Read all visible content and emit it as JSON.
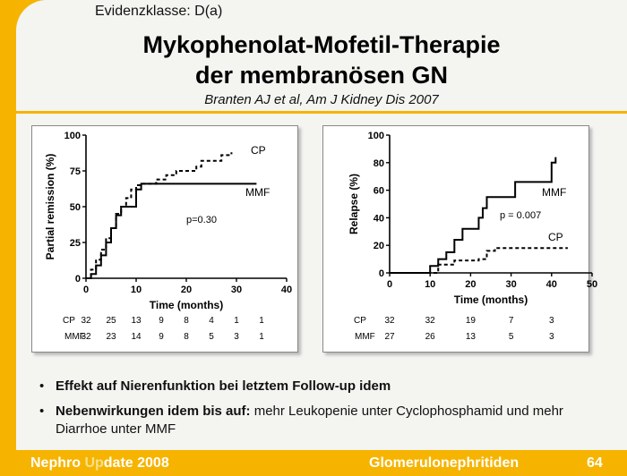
{
  "slide": {
    "evidence": "Evidenzklasse: D(a)",
    "title_line1": "Mykophenolat-Mofetil-Therapie",
    "title_line2": "der membranösen GN",
    "citation": "Branten AJ et al, Am J Kidney Dis 2007"
  },
  "chart_data": [
    {
      "type": "line",
      "title": "",
      "xlabel": "Time (months)",
      "ylabel": "Partial remission (%)",
      "xlim": [
        0,
        40
      ],
      "ylim": [
        0,
        100
      ],
      "xticks": [
        0,
        10,
        20,
        30,
        40
      ],
      "yticks": [
        0,
        25,
        50,
        75,
        100
      ],
      "annotation": "p=0.30",
      "series": [
        {
          "name": "CP",
          "style": "dashed",
          "color": "#000000",
          "x": [
            0,
            1,
            2,
            3,
            4,
            5,
            6,
            7,
            8,
            9,
            10,
            11,
            14,
            16,
            18,
            22,
            23,
            27,
            29
          ],
          "y": [
            0,
            6,
            13,
            20,
            28,
            35,
            45,
            50,
            56,
            62,
            65,
            66,
            69,
            72,
            75,
            78,
            82,
            86,
            88
          ]
        },
        {
          "name": "MMF",
          "style": "solid",
          "color": "#000000",
          "x": [
            0,
            1,
            2,
            3,
            4,
            5,
            6,
            7,
            9,
            10,
            11,
            34
          ],
          "y": [
            0,
            3,
            9,
            16,
            25,
            35,
            44,
            50,
            50,
            62,
            66,
            66
          ]
        }
      ],
      "risk_table": {
        "times": [
          0,
          5,
          10,
          15,
          20,
          25,
          30,
          35
        ],
        "rows": [
          {
            "label": "CP",
            "values": [
              "32",
              "25",
              "13",
              "9",
              "8",
              "4",
              "1",
              "1"
            ]
          },
          {
            "label": "MMF",
            "values": [
              "32",
              "23",
              "14",
              "9",
              "8",
              "5",
              "3",
              "1"
            ]
          }
        ]
      }
    },
    {
      "type": "line",
      "title": "",
      "xlabel": "Time (months)",
      "ylabel": "Relapse (%)",
      "xlim": [
        0,
        50
      ],
      "ylim": [
        0,
        100
      ],
      "xticks": [
        0,
        10,
        20,
        30,
        40,
        50
      ],
      "yticks": [
        0,
        20,
        40,
        60,
        80,
        100
      ],
      "annotation": "p = 0.007",
      "series": [
        {
          "name": "MMF",
          "style": "solid",
          "color": "#000000",
          "x": [
            0,
            8,
            10,
            12,
            14,
            16,
            18,
            20,
            22,
            23,
            24,
            31,
            40,
            41
          ],
          "y": [
            0,
            0,
            5,
            10,
            15,
            24,
            32,
            32,
            40,
            47,
            55,
            66,
            80,
            84
          ]
        },
        {
          "name": "CP",
          "style": "dashed",
          "color": "#000000",
          "x": [
            0,
            10,
            12,
            16,
            20,
            22,
            24,
            26,
            44
          ],
          "y": [
            0,
            0,
            6,
            9,
            9,
            10,
            16,
            18,
            18
          ]
        }
      ],
      "risk_table": {
        "times": [
          0,
          10,
          20,
          30,
          40
        ],
        "rows": [
          {
            "label": "CP",
            "values": [
              "32",
              "32",
              "19",
              "7",
              "3"
            ]
          },
          {
            "label": "MMF",
            "values": [
              "27",
              "26",
              "13",
              "5",
              "3"
            ]
          }
        ]
      }
    }
  ],
  "bullets": [
    {
      "bold": "Effekt auf Nierenfunktion bei letztem Follow-up idem",
      "rest": ""
    },
    {
      "bold": "Nebenwirkungen idem bis auf:",
      "rest": " mehr Leukopenie unter Cyclophosphamid und mehr Diarrhoe unter MMF"
    }
  ],
  "footer": {
    "brand_a": "Nephro ",
    "brand_b": "Up",
    "brand_c": "date 2008",
    "topic": "Glomerulonephritiden",
    "page": "64"
  }
}
